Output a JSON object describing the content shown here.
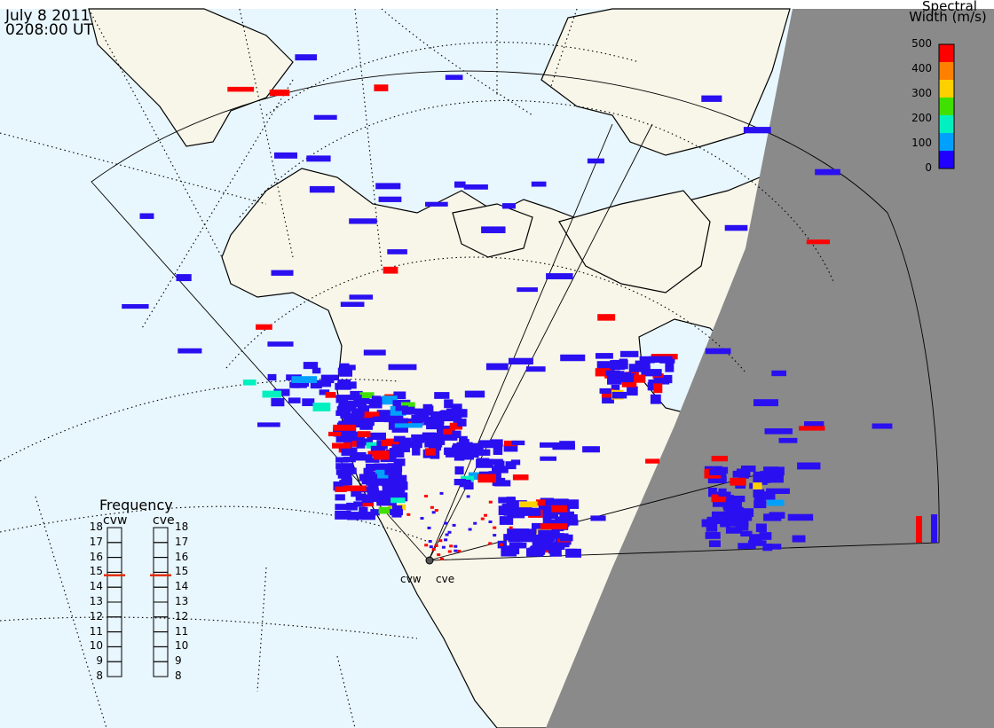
{
  "header": {
    "date": "July  8 2011",
    "time": "0208:00 UT"
  },
  "colorbar": {
    "title_line1": "Spectral",
    "title_line2": "Width (m/s)",
    "ticks": [
      "500",
      "400",
      "300",
      "200",
      "100",
      "0"
    ],
    "range": [
      0,
      500
    ],
    "colors": [
      "#ff0000",
      "#ff8000",
      "#ffd000",
      "#40e000",
      "#00f0c0",
      "#00a0ff",
      "#2000ff"
    ]
  },
  "frequency": {
    "title": "Frequency",
    "radars": [
      {
        "name": "cvw",
        "value": 14.8
      },
      {
        "name": "cve",
        "value": 14.8
      }
    ],
    "ticks": [
      "18",
      "17",
      "16",
      "15",
      "14",
      "13",
      "12",
      "11",
      "10",
      "9",
      "8"
    ],
    "range": [
      8,
      18
    ]
  },
  "stations": {
    "west": "cvw",
    "east": "cve"
  },
  "colors": {
    "ocean": "#e8f6fd",
    "land": "#f8f6e9",
    "night": "#8a8a8a",
    "scatter_blue": "#2a10f0"
  }
}
